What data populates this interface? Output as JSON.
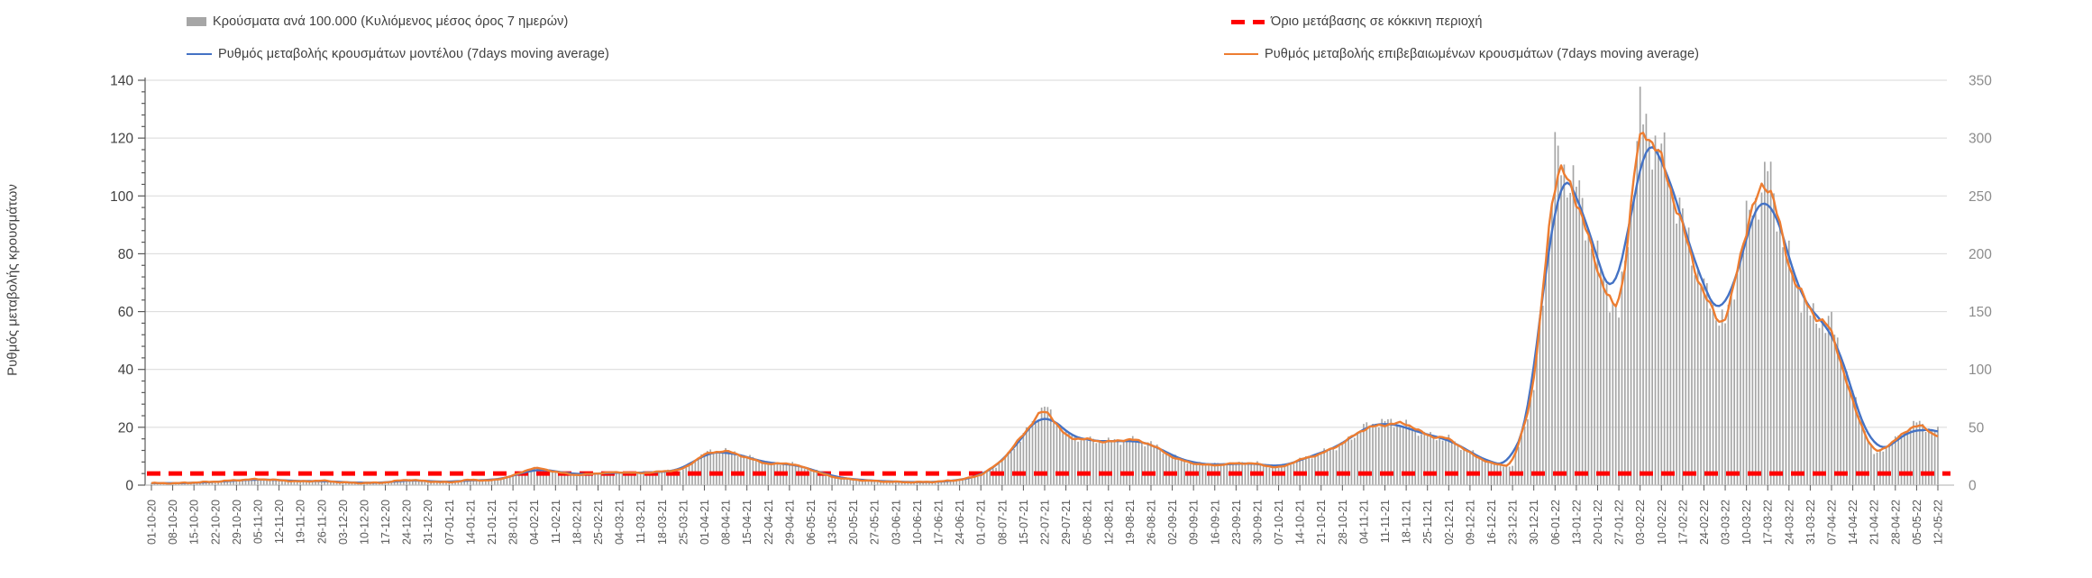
{
  "legend": {
    "bars_label": "Κρούσματα ανά 100.000 (Κυλιόμενος μέσος όρος 7 ημερών)",
    "threshold_label": "Όριο μετάβασης σε κόκκινη περιοχή",
    "model_label": "Ρυθμός μεταβολής κρουσμάτων μοντέλου (7days moving average)",
    "confirmed_label": "Ρυθμός μεταβολής επιβεβαιωμένων κρουσμάτων (7days moving average)"
  },
  "chart_data": {
    "type": "bar",
    "subtype": "combo-bar-lines",
    "title": "",
    "left_axis": {
      "label": "Ρυθμός μεταβολής κρουσμάτων",
      "min": 0,
      "max": 140,
      "step": 20,
      "minor_step": 4
    },
    "right_axis": {
      "label": "",
      "min": 0,
      "max": 350,
      "step": 50
    },
    "grid": "horizontal",
    "legend_position": "top",
    "categories": [
      "01-10-20",
      "08-10-20",
      "15-10-20",
      "22-10-20",
      "29-10-20",
      "05-11-20",
      "12-11-20",
      "19-11-20",
      "26-11-20",
      "03-12-20",
      "10-12-20",
      "17-12-20",
      "24-12-20",
      "31-12-20",
      "07-01-21",
      "14-01-21",
      "21-01-21",
      "28-01-21",
      "04-02-21",
      "11-02-21",
      "18-02-21",
      "25-02-21",
      "04-03-21",
      "11-03-21",
      "18-03-21",
      "25-03-21",
      "01-04-21",
      "08-04-21",
      "15-04-21",
      "22-04-21",
      "29-04-21",
      "06-05-21",
      "13-05-21",
      "20-05-21",
      "27-05-21",
      "03-06-21",
      "10-06-21",
      "17-06-21",
      "24-06-21",
      "01-07-21",
      "08-07-21",
      "15-07-21",
      "22-07-21",
      "29-07-21",
      "05-08-21",
      "12-08-21",
      "19-08-21",
      "26-08-21",
      "02-09-21",
      "09-09-21",
      "16-09-21",
      "23-09-21",
      "30-09-21",
      "07-10-21",
      "14-10-21",
      "21-10-21",
      "28-10-21",
      "04-11-21",
      "11-11-21",
      "18-11-21",
      "25-11-21",
      "02-12-21",
      "09-12-21",
      "16-12-21",
      "23-12-21",
      "30-12-21",
      "06-01-22",
      "13-01-22",
      "20-01-22",
      "27-01-22",
      "03-02-22",
      "10-02-22",
      "17-02-22",
      "24-02-22",
      "03-03-22",
      "10-03-22",
      "17-03-22",
      "24-03-22",
      "31-03-22",
      "07-04-22",
      "14-04-22",
      "21-04-22",
      "28-04-22",
      "05-05-22",
      "12-05-22"
    ],
    "series": [
      {
        "name": "Κρούσματα ανά 100.000 (Κυλιόμενος μέσος όρος 7 ημερών)",
        "type": "bar",
        "axis": "right",
        "color": "#a6a6a6",
        "values": [
          2,
          2,
          2,
          3,
          4,
          5,
          5,
          3,
          4,
          3,
          2,
          2,
          5,
          4,
          3,
          5,
          4,
          8,
          15,
          12,
          9,
          10,
          11,
          11,
          12,
          13,
          28,
          30,
          25,
          19,
          19,
          14,
          8,
          5,
          4,
          3,
          3,
          3,
          4,
          8,
          20,
          43,
          68,
          44,
          39,
          38,
          39,
          36,
          25,
          19,
          18,
          19,
          19,
          15,
          22,
          28,
          35,
          50,
          55,
          52,
          43,
          40,
          29,
          19,
          16,
          80,
          283,
          258,
          193,
          145,
          318,
          288,
          228,
          168,
          138,
          225,
          272,
          193,
          145,
          140,
          78,
          26,
          39,
          54,
          46
        ]
      },
      {
        "name": "Ρυθμός μεταβολής κρουσμάτων μοντέλου (7days moving average)",
        "type": "line",
        "axis": "left",
        "color": "#4472c4",
        "values": [
          0.8,
          0.6,
          0.8,
          1.1,
          1.6,
          2.0,
          1.8,
          1.3,
          1.5,
          1.0,
          0.8,
          0.8,
          1.8,
          1.4,
          1.0,
          1.8,
          1.6,
          3.0,
          5.8,
          4.8,
          3.6,
          4.0,
          4.4,
          4.2,
          4.6,
          5.2,
          11.2,
          11.6,
          9.8,
          7.4,
          7.5,
          5.6,
          3.0,
          2.0,
          1.5,
          1.2,
          1.0,
          1.1,
          1.7,
          3.2,
          8.0,
          17.0,
          26.5,
          17.5,
          15.5,
          15.0,
          15.5,
          14.5,
          10.0,
          7.6,
          7.0,
          7.4,
          7.6,
          6.0,
          8.6,
          11.2,
          14.0,
          20.0,
          21.8,
          20.0,
          17.2,
          16.0,
          11.4,
          7.6,
          6.4,
          30.0,
          111,
          103,
          77,
          58,
          123,
          115,
          91,
          67,
          55,
          88,
          106,
          77,
          58,
          56,
          31,
          10,
          15,
          20.5,
          17.5
        ]
      },
      {
        "name": "Ρυθμός μεταβολής επιβεβαιωμένων κρουσμάτων (7days moving average)",
        "type": "line",
        "axis": "left",
        "color": "#ed7d31",
        "values": [
          0.7,
          0.6,
          0.9,
          1.2,
          1.7,
          2.1,
          1.7,
          1.2,
          1.6,
          0.9,
          0.7,
          0.9,
          1.9,
          1.3,
          0.9,
          1.9,
          1.5,
          3.2,
          6.2,
          4.6,
          3.4,
          4.1,
          4.5,
          4.1,
          4.7,
          5.4,
          10.8,
          12.0,
          9.5,
          7.2,
          7.6,
          5.4,
          2.8,
          1.9,
          1.4,
          1.1,
          1.0,
          1.2,
          1.8,
          3.4,
          8.4,
          17.6,
          27.0,
          16.5,
          15.8,
          14.8,
          16.0,
          14.2,
          9.6,
          7.4,
          6.8,
          7.6,
          7.4,
          5.8,
          8.8,
          10.8,
          14.4,
          19.5,
          21.0,
          21.5,
          17.0,
          16.2,
          11.0,
          7.4,
          6.6,
          33.0,
          112,
          100,
          74,
          57,
          126,
          113,
          89,
          65,
          54,
          90,
          108,
          75,
          60,
          54,
          28,
          10.5,
          15.5,
          21.5,
          16.5
        ]
      },
      {
        "name": "Όριο μετάβασης σε κόκκινη περιοχή",
        "type": "threshold-line",
        "axis": "left",
        "color": "#ff0000",
        "dash": true,
        "value": 4
      }
    ]
  }
}
